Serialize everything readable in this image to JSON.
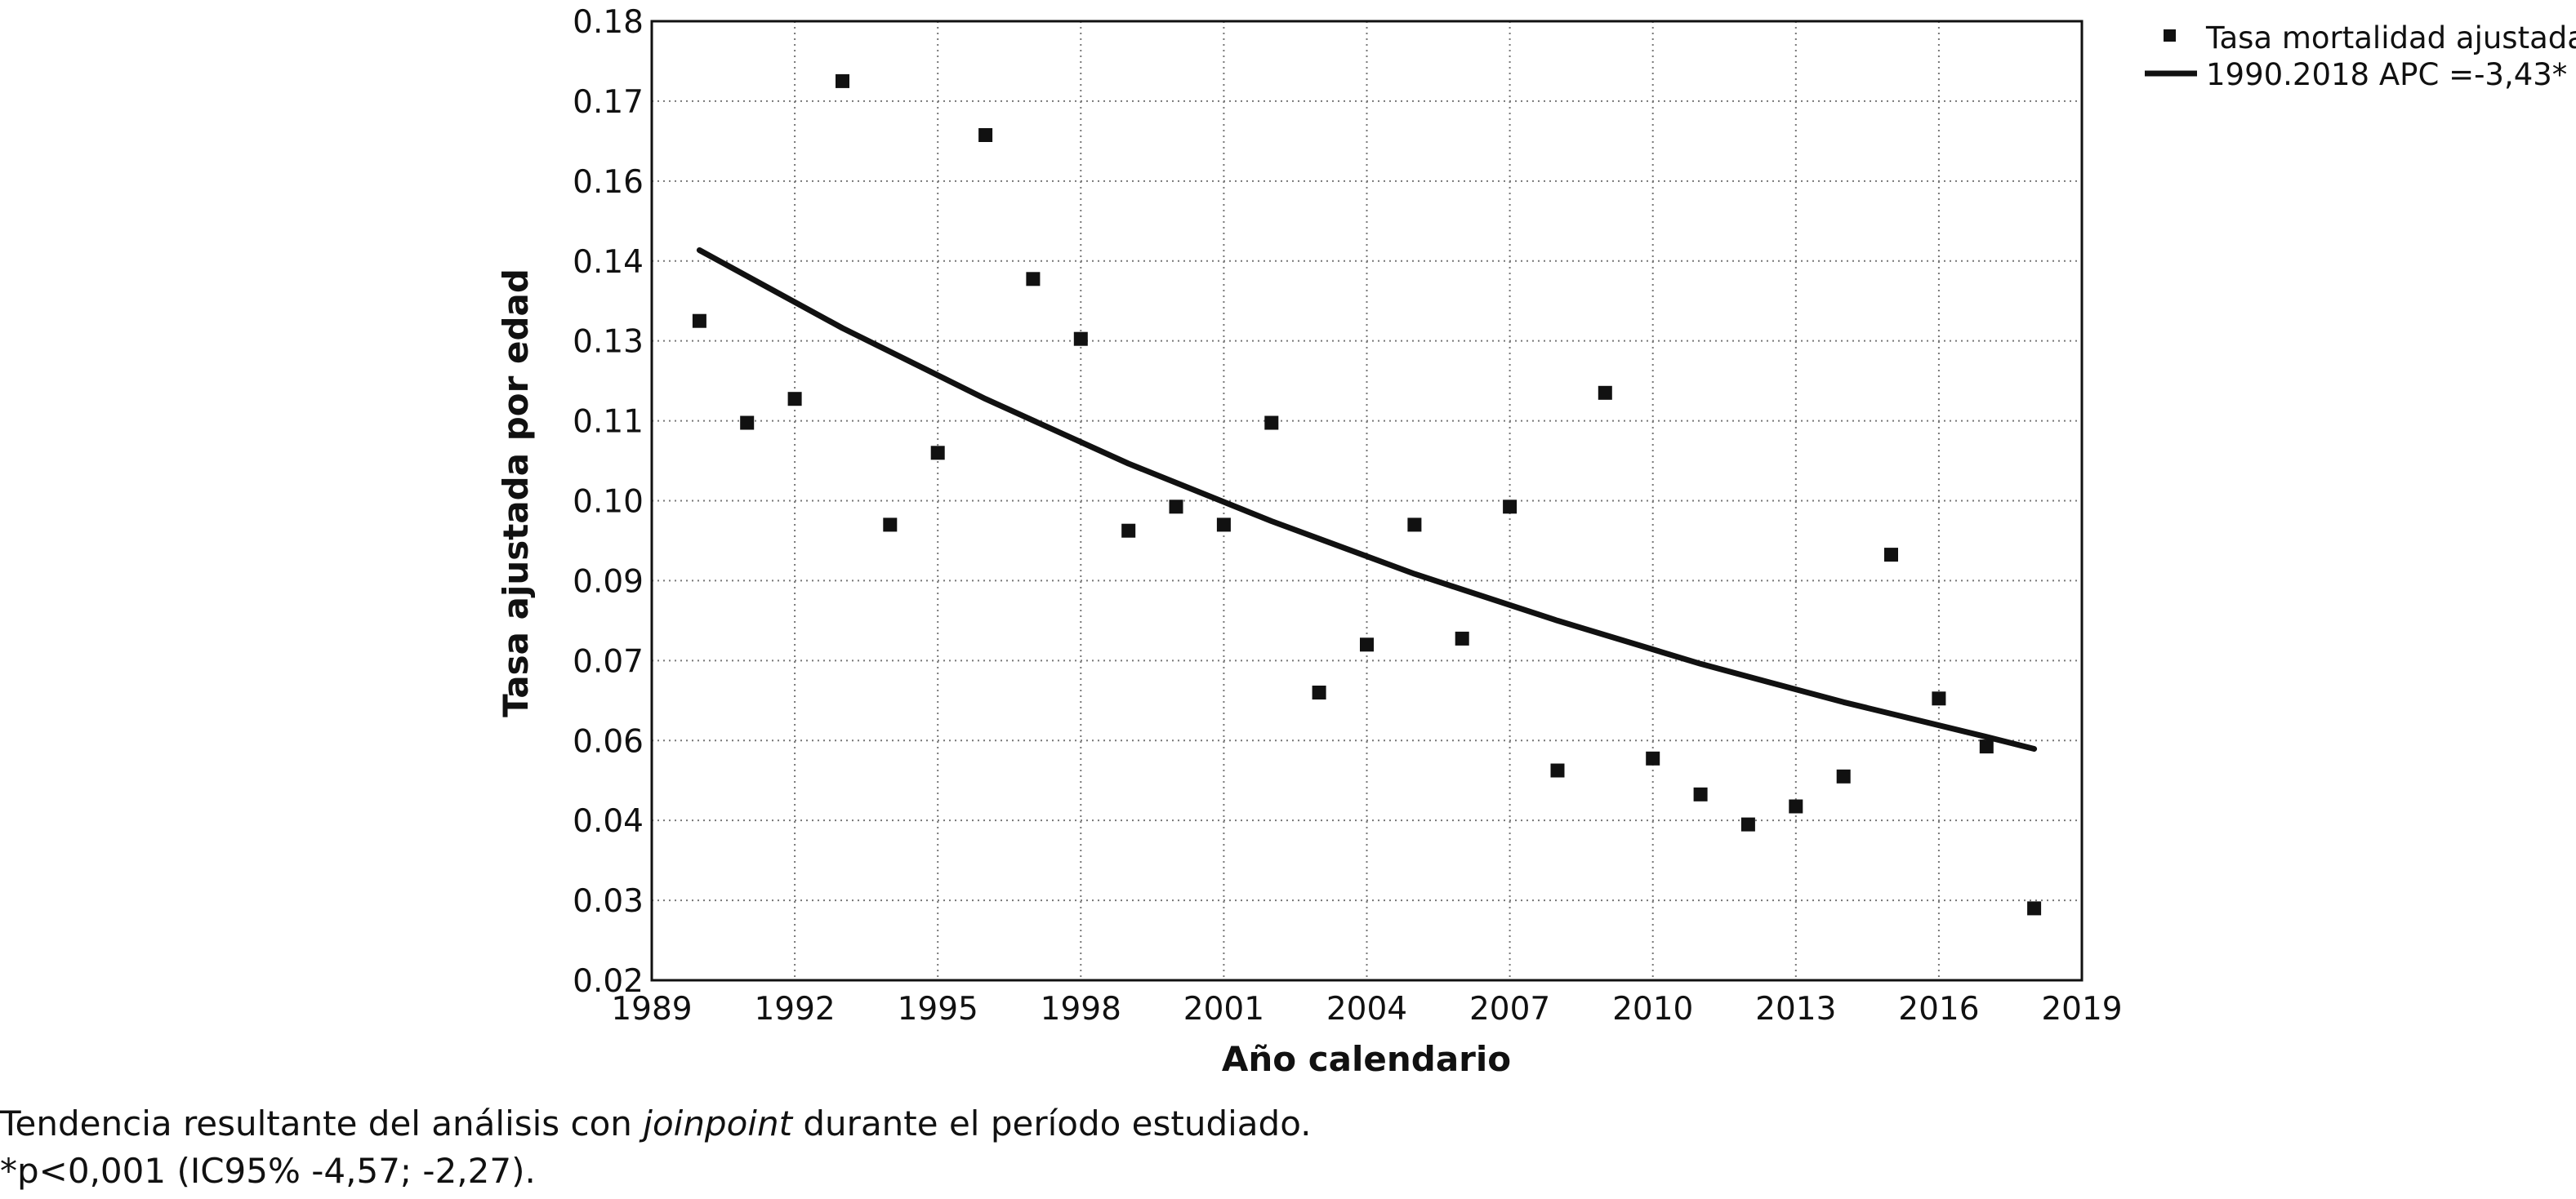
{
  "chart_data": {
    "type": "scatter",
    "xlabel": "Año calendario",
    "ylabel": "Tasa ajustada por edad",
    "xlim": [
      1989,
      2019
    ],
    "ylim": [
      0.02,
      0.18
    ],
    "x_ticks": [
      "1989",
      "1992",
      "1995",
      "1998",
      "2001",
      "2004",
      "2007",
      "2010",
      "2013",
      "2016",
      "2019"
    ],
    "y_ticks": [
      "0.02",
      "0.03",
      "0.04",
      "0.06",
      "0.07",
      "0.09",
      "0.10",
      "0.11",
      "0.13",
      "0.14",
      "0.16",
      "0.17",
      "0.18"
    ],
    "grid": "dotted",
    "legend_position": "top-right",
    "series": [
      {
        "name": "Tasa mortalidad ajustada",
        "kind": "markers",
        "marker": "square",
        "color": "#111111",
        "x": [
          1990,
          1991,
          1992,
          1993,
          1994,
          1995,
          1996,
          1997,
          1998,
          1999,
          2000,
          2001,
          2002,
          2003,
          2004,
          2005,
          2006,
          2007,
          2008,
          2009,
          2010,
          2011,
          2012,
          2013,
          2014,
          2015,
          2016,
          2017,
          2018
        ],
        "y": [
          0.13,
          0.113,
          0.117,
          0.17,
          0.096,
          0.108,
          0.161,
          0.137,
          0.127,
          0.095,
          0.099,
          0.096,
          0.113,
          0.068,
          0.076,
          0.096,
          0.077,
          0.099,
          0.055,
          0.118,
          0.057,
          0.051,
          0.046,
          0.049,
          0.054,
          0.091,
          0.067,
          0.059,
          0.032
        ]
      },
      {
        "name": "1990.2018 APC =-3,43*",
        "kind": "line",
        "color": "#111111",
        "apc_percent": -3.43,
        "x": [
          1990,
          1993,
          1996,
          1999,
          2002,
          2005,
          2008,
          2011,
          2014,
          2017,
          2018
        ],
        "y": [
          0.1418,
          0.1288,
          0.117,
          0.1062,
          0.0966,
          0.0878,
          0.08,
          0.0728,
          0.0664,
          0.0606,
          0.0586
        ]
      }
    ]
  },
  "caption": {
    "line1_before": "Tendencia resultante del análisis con ",
    "line1_italic": "joinpoint",
    "line1_after": " durante el período estudiado.",
    "line2": "*p<0,001 (IC95% -4,57; -2,27)."
  }
}
